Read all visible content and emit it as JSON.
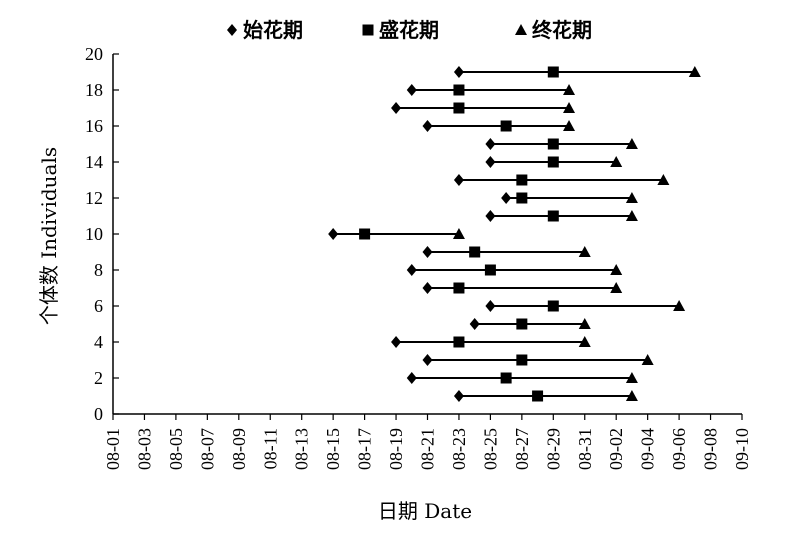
{
  "chart_data": {
    "type": "scatter",
    "title": "",
    "xlabel": "日期 Date",
    "ylabel": "个体数 Individuals",
    "x_ticks": [
      "08-01",
      "08-03",
      "08-05",
      "08-07",
      "08-09",
      "08-11",
      "08-13",
      "08-15",
      "08-17",
      "08-19",
      "08-21",
      "08-23",
      "08-25",
      "08-27",
      "08-29",
      "08-31",
      "09-02",
      "09-04",
      "09-06",
      "09-08",
      "09-10"
    ],
    "xlim": [
      "08-01",
      "09-10"
    ],
    "ylim": [
      0,
      20
    ],
    "y_ticks": [
      "0",
      "2",
      "4",
      "6",
      "8",
      "10",
      "12",
      "14",
      "16",
      "18",
      "20"
    ],
    "grid": false,
    "legend_position": "top",
    "series": [
      {
        "name": "始花期",
        "marker": "diamond"
      },
      {
        "name": "盛花期",
        "marker": "square"
      },
      {
        "name": "终花期",
        "marker": "triangle"
      }
    ],
    "individuals": [
      {
        "y": 1,
        "first": "08-23",
        "peak": "08-28",
        "end": "09-03"
      },
      {
        "y": 2,
        "first": "08-20",
        "peak": "08-26",
        "end": "09-03"
      },
      {
        "y": 3,
        "first": "08-21",
        "peak": "08-27",
        "end": "09-04"
      },
      {
        "y": 4,
        "first": "08-19",
        "peak": "08-23",
        "end": "08-31"
      },
      {
        "y": 5,
        "first": "08-24",
        "peak": "08-27",
        "end": "08-31"
      },
      {
        "y": 6,
        "first": "08-25",
        "peak": "08-29",
        "end": "09-06"
      },
      {
        "y": 7,
        "first": "08-21",
        "peak": "08-23",
        "end": "09-02"
      },
      {
        "y": 8,
        "first": "08-20",
        "peak": "08-25",
        "end": "09-02"
      },
      {
        "y": 9,
        "first": "08-21",
        "peak": "08-24",
        "end": "08-31"
      },
      {
        "y": 10,
        "first": "08-15",
        "peak": "08-17",
        "end": "08-23"
      },
      {
        "y": 11,
        "first": "08-25",
        "peak": "08-29",
        "end": "09-03"
      },
      {
        "y": 12,
        "first": "08-26",
        "peak": "08-27",
        "end": "09-03"
      },
      {
        "y": 13,
        "first": "08-23",
        "peak": "08-27",
        "end": "09-05"
      },
      {
        "y": 14,
        "first": "08-25",
        "peak": "08-29",
        "end": "09-02"
      },
      {
        "y": 15,
        "first": "08-25",
        "peak": "08-29",
        "end": "09-03"
      },
      {
        "y": 16,
        "first": "08-21",
        "peak": "08-26",
        "end": "08-30"
      },
      {
        "y": 17,
        "first": "08-19",
        "peak": "08-23",
        "end": "08-30"
      },
      {
        "y": 18,
        "first": "08-20",
        "peak": "08-23",
        "end": "08-30"
      },
      {
        "y": 19,
        "first": "08-23",
        "peak": "08-29",
        "end": "09-07"
      }
    ]
  }
}
